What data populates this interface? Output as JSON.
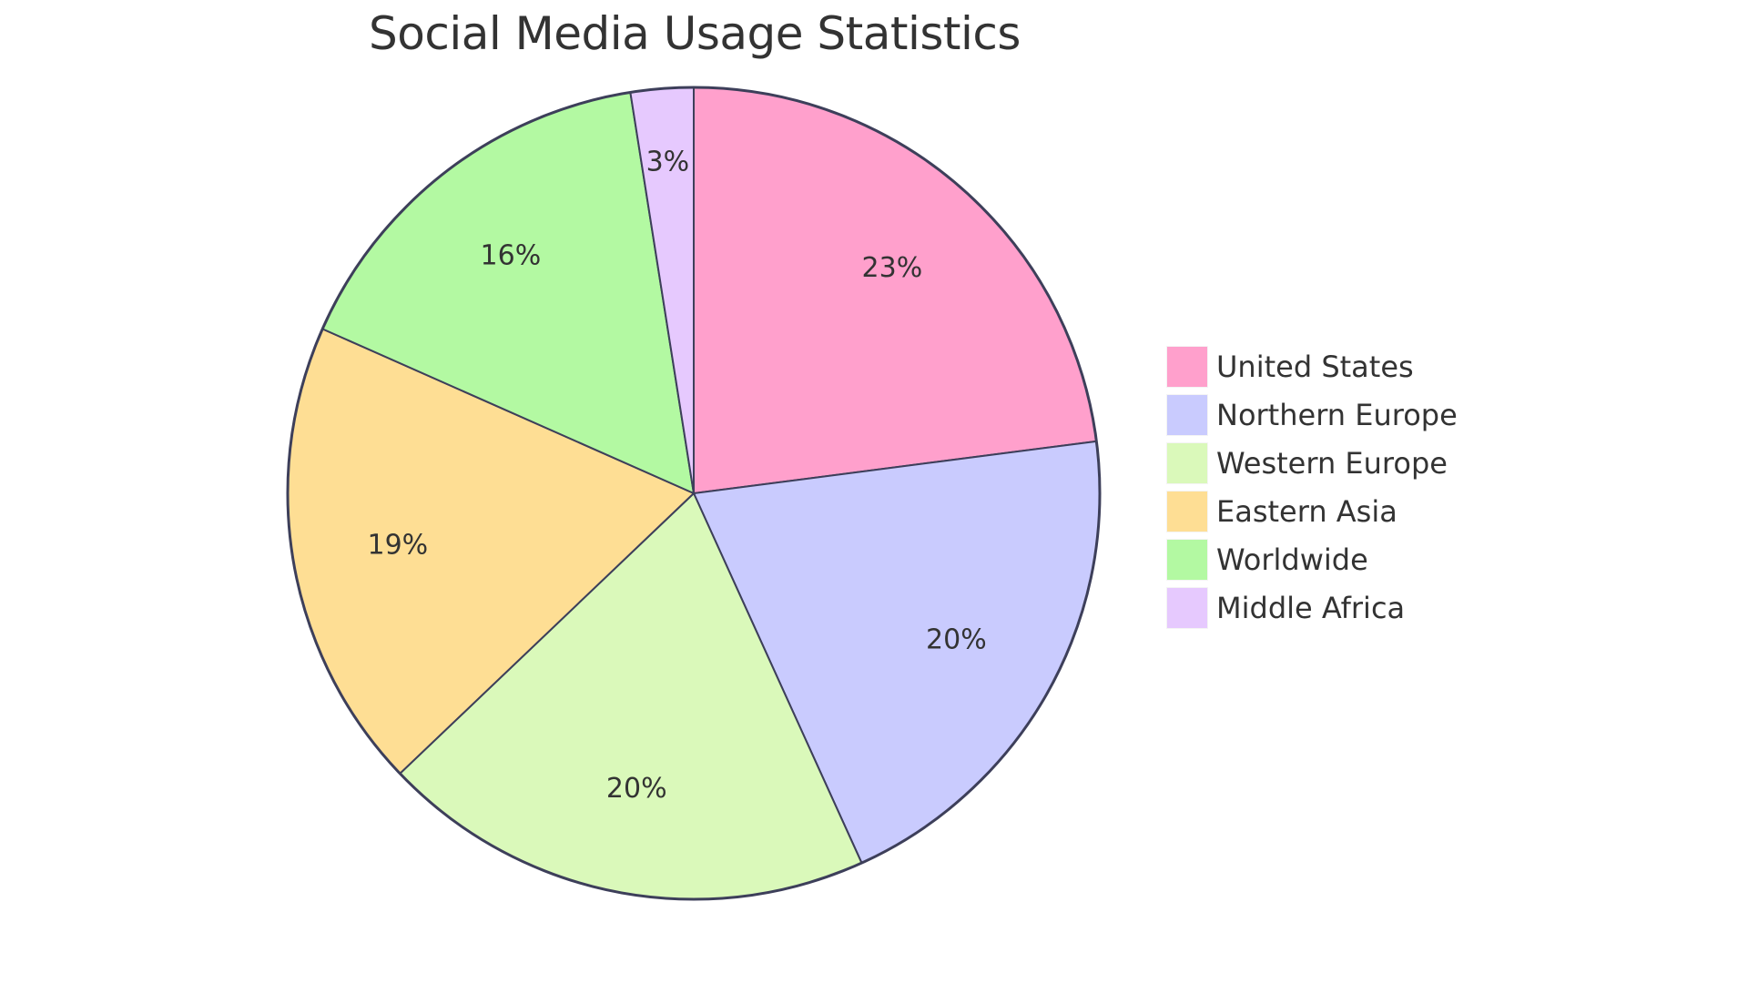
{
  "chart_data": {
    "type": "pie",
    "title": "Social Media Usage Statistics",
    "categories": [
      "United States",
      "Northern Europe",
      "Western Europe",
      "Eastern Asia",
      "Worldwide",
      "Middle Africa"
    ],
    "values": [
      23,
      20.3,
      19.7,
      18.8,
      15.9,
      2.5
    ],
    "labels": [
      "23%",
      "20%",
      "20%",
      "19%",
      "16%",
      "3%"
    ],
    "colors": [
      "#FFA0CC",
      "#C9CBFE",
      "#DAF9BA",
      "#FEDE94",
      "#B3F9A2",
      "#E6C9FE"
    ],
    "start_angle_deg": 0,
    "direction": "clockwise",
    "legend_position": "right",
    "stroke_color": "#3D3F5A"
  },
  "title": "Social Media Usage Statistics",
  "legend": {
    "items": [
      {
        "label": "United States",
        "color": "#FFA0CC"
      },
      {
        "label": "Northern Europe",
        "color": "#C9CBFE"
      },
      {
        "label": "Western Europe",
        "color": "#DAF9BA"
      },
      {
        "label": "Eastern Asia",
        "color": "#FEDE94"
      },
      {
        "label": "Worldwide",
        "color": "#B3F9A2"
      },
      {
        "label": "Middle Africa",
        "color": "#E6C9FE"
      }
    ]
  }
}
